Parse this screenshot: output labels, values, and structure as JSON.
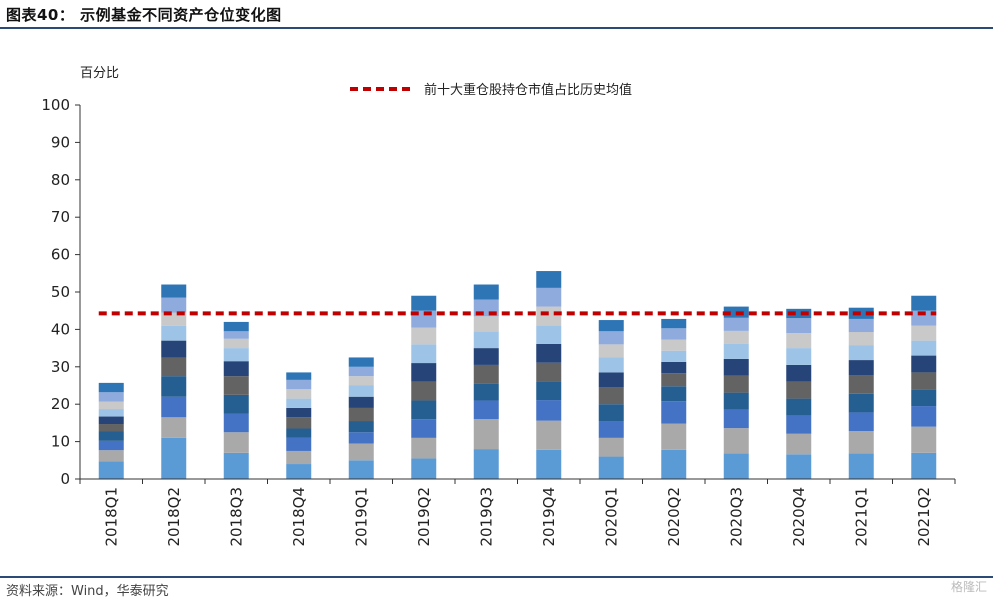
{
  "figure": {
    "title": "图表40： 示例基金不同资产仓位变化图",
    "source": "资料来源：Wind，华泰研究",
    "watermark": "格隆汇"
  },
  "colors": {
    "series": [
      "#5b9bd5",
      "#a9a9a9",
      "#4472c4",
      "#255e91",
      "#636363",
      "#264478",
      "#9dc3e6",
      "#c9c9c9",
      "#8faadc",
      "#2e75b6"
    ],
    "average_line": "#c00000",
    "rule": "#2c4a78"
  },
  "chart_data": {
    "type": "bar",
    "stacked": true,
    "title": "",
    "ylabel": "百分比",
    "xlabel": "",
    "ylim": [
      0,
      100
    ],
    "yticks": [
      0,
      10,
      20,
      30,
      40,
      50,
      60,
      70,
      80,
      90,
      100
    ],
    "categories": [
      "2018Q1",
      "2018Q2",
      "2018Q3",
      "2018Q4",
      "2019Q1",
      "2019Q2",
      "2019Q3",
      "2019Q4",
      "2020Q1",
      "2020Q2",
      "2020Q3",
      "2020Q4",
      "2021Q1",
      "2021Q2"
    ],
    "series": [
      {
        "values": [
          4.7,
          11.0,
          7.0,
          4.0,
          5.0,
          5.5,
          8.0,
          7.8,
          6.0,
          7.8,
          6.8,
          6.6,
          6.8,
          7.0
        ]
      },
      {
        "values": [
          3.0,
          5.5,
          5.5,
          3.5,
          4.5,
          5.5,
          8.0,
          7.8,
          5.0,
          7.0,
          6.8,
          5.5,
          6.0,
          7.0
        ]
      },
      {
        "values": [
          2.5,
          5.5,
          5.0,
          3.5,
          3.0,
          5.0,
          5.0,
          5.5,
          4.5,
          6.0,
          5.0,
          4.9,
          5.0,
          5.5
        ]
      },
      {
        "values": [
          2.5,
          5.5,
          5.0,
          2.5,
          3.0,
          5.0,
          4.5,
          5.0,
          4.5,
          4.0,
          4.5,
          4.5,
          5.0,
          4.5
        ]
      },
      {
        "values": [
          2.0,
          5.0,
          5.0,
          3.0,
          3.5,
          5.0,
          5.0,
          5.0,
          4.5,
          3.5,
          4.5,
          4.5,
          5.0,
          4.5
        ]
      },
      {
        "values": [
          2.0,
          4.5,
          4.0,
          2.5,
          3.0,
          5.0,
          4.5,
          5.0,
          4.0,
          3.0,
          4.5,
          4.5,
          4.0,
          4.5
        ]
      },
      {
        "values": [
          2.0,
          4.0,
          3.5,
          2.5,
          3.0,
          5.0,
          4.5,
          5.0,
          4.0,
          3.0,
          4.0,
          4.5,
          4.0,
          4.0
        ]
      },
      {
        "values": [
          2.0,
          3.5,
          2.5,
          2.5,
          2.5,
          4.5,
          4.0,
          5.0,
          3.5,
          3.0,
          3.5,
          4.0,
          3.5,
          4.0
        ]
      },
      {
        "values": [
          2.5,
          4.0,
          2.0,
          2.5,
          2.5,
          4.5,
          4.5,
          5.0,
          3.5,
          3.0,
          3.5,
          4.0,
          3.5,
          4.0
        ]
      },
      {
        "values": [
          2.5,
          3.5,
          2.5,
          2.0,
          2.5,
          4.0,
          4.0,
          4.5,
          3.0,
          2.5,
          3.0,
          2.5,
          3.0,
          4.0
        ]
      }
    ],
    "reference_line": {
      "label": "前十大重仓股持仓市值占比历史均值",
      "value": 44.3,
      "style": "dashed"
    },
    "legend_position": "top"
  }
}
